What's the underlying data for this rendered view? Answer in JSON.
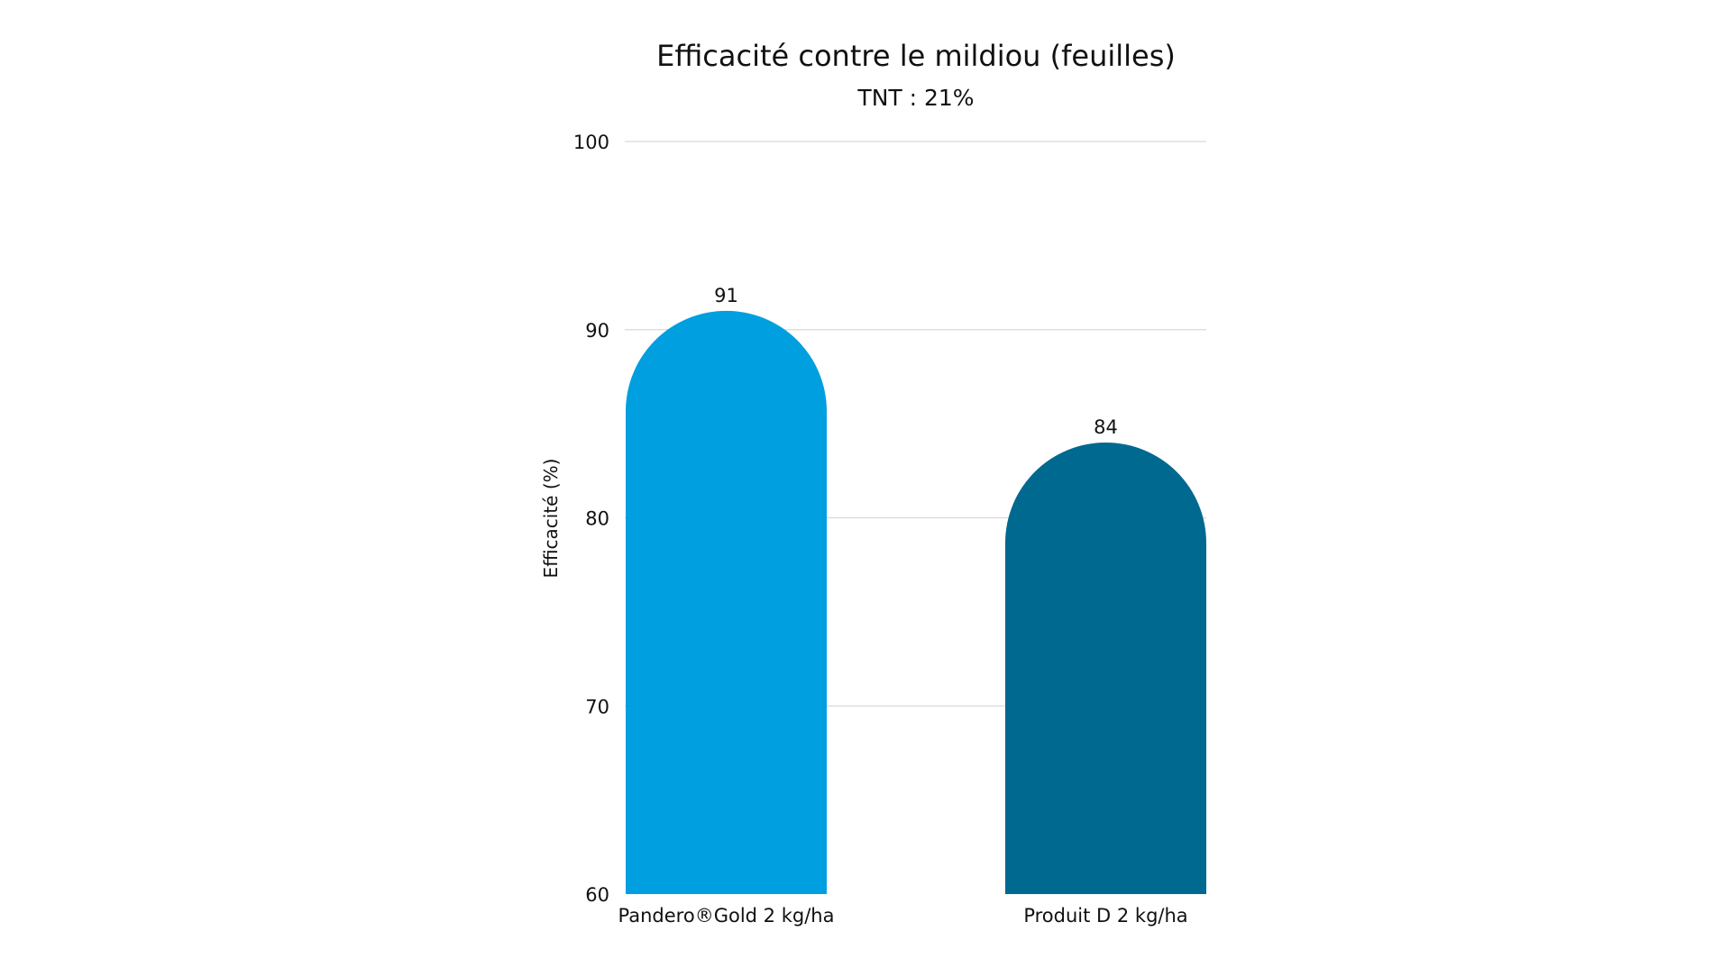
{
  "chart_data": {
    "type": "bar",
    "title": "Efficacité contre le mildiou (feuilles)",
    "subtitle": "TNT : 21%",
    "ylabel": "Efficacité (%)",
    "xlabel": "",
    "ylim": [
      60,
      100
    ],
    "yticks": [
      "60",
      "70",
      "80",
      "90",
      "100"
    ],
    "grid": true,
    "categories": [
      "Pandero®Gold 2 kg/ha",
      "Produit D 2 kg/ha"
    ],
    "values": [
      91,
      84
    ],
    "data_labels": [
      "91",
      "84"
    ],
    "colors": [
      "#009fdf",
      "#006990"
    ]
  }
}
